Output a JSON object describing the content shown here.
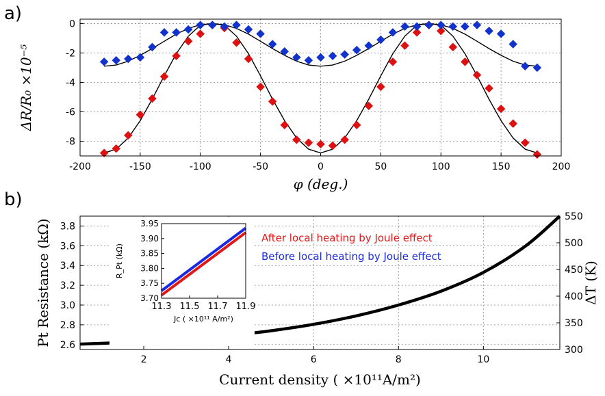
{
  "panel_labels": {
    "a": "a)",
    "b": "b)"
  },
  "chart_data": [
    {
      "id": "a",
      "type": "scatter",
      "xlabel": "φ (deg.)",
      "ylabel": "ΔR/R₀ ×10⁻⁵",
      "xlim": [
        -200,
        200
      ],
      "ylim": [
        -9,
        0.3
      ],
      "xticks": [
        "-200",
        "-150",
        "-100",
        "-50",
        "0",
        "50",
        "100",
        "150",
        "200"
      ],
      "yticks": [
        "-8",
        "-6",
        "-4",
        "-2",
        "0"
      ],
      "grid": true,
      "colors": {
        "red_series": "#dd1111",
        "blue_series": "#1133cc",
        "fit": "#000000"
      },
      "series": [
        {
          "marker": "diamond",
          "color": "#dd1111",
          "x": [
            -180,
            -170,
            -160,
            -150,
            -140,
            -130,
            -120,
            -110,
            -100,
            -90,
            -80,
            -70,
            -60,
            -50,
            -40,
            -30,
            -20,
            -10,
            0,
            10,
            20,
            30,
            40,
            50,
            60,
            70,
            80,
            90,
            100,
            110,
            120,
            130,
            140,
            150,
            160,
            170,
            180
          ],
          "y": [
            -8.8,
            -8.5,
            -7.6,
            -6.2,
            -5.1,
            -3.6,
            -2.2,
            -1.2,
            -0.7,
            -0.1,
            -0.3,
            -1.3,
            -2.4,
            -4.3,
            -5.3,
            -6.9,
            -7.9,
            -8.1,
            -8.2,
            -8.3,
            -7.9,
            -6.9,
            -5.6,
            -4.3,
            -2.6,
            -1.5,
            -0.6,
            -0.1,
            -0.5,
            -1.6,
            -2.6,
            -3.5,
            -4.4,
            -5.8,
            -6.8,
            -8.1,
            -8.9
          ]
        },
        {
          "marker": "diamond",
          "color": "#1133cc",
          "x": [
            -180,
            -170,
            -160,
            -150,
            -140,
            -130,
            -120,
            -110,
            -100,
            -90,
            -80,
            -70,
            -60,
            -50,
            -40,
            -30,
            -20,
            -10,
            0,
            10,
            20,
            30,
            40,
            50,
            60,
            70,
            80,
            90,
            100,
            110,
            120,
            130,
            140,
            150,
            160,
            170,
            180
          ],
          "y": [
            -2.6,
            -2.5,
            -2.4,
            -2.3,
            -1.6,
            -0.6,
            -0.6,
            -0.4,
            -0.1,
            -0.1,
            -0.2,
            -0.1,
            -0.4,
            -0.7,
            -1.4,
            -1.9,
            -2.3,
            -2.5,
            -2.3,
            -2.2,
            -2.1,
            -1.8,
            -1.5,
            -1.1,
            -0.6,
            -0.2,
            -0.2,
            -0.1,
            -0.1,
            -0.2,
            -0.2,
            -0.1,
            -0.5,
            -0.7,
            -1.4,
            -2.9,
            -3.0
          ]
        }
      ],
      "fits": [
        {
          "x": [
            -180,
            -170,
            -160,
            -150,
            -140,
            -130,
            -120,
            -110,
            -100,
            -90,
            -80,
            -70,
            -60,
            -50,
            -40,
            -30,
            -20,
            -10,
            0,
            10,
            20,
            30,
            40,
            50,
            60,
            70,
            80,
            90,
            100,
            110,
            120,
            130,
            140,
            150,
            160,
            170,
            180
          ],
          "y": [
            -8.8,
            -8.54,
            -7.78,
            -6.6,
            -5.14,
            -3.55,
            -2.05,
            -0.86,
            -0.11,
            0,
            -0.11,
            -0.86,
            -2.05,
            -3.55,
            -5.14,
            -6.6,
            -7.78,
            -8.54,
            -8.8,
            -8.54,
            -7.78,
            -6.6,
            -5.14,
            -3.55,
            -2.05,
            -0.86,
            -0.11,
            0,
            -0.11,
            -0.86,
            -2.05,
            -3.55,
            -5.14,
            -6.6,
            -7.78,
            -8.54,
            -8.8
          ]
        },
        {
          "x": [
            -180,
            -170,
            -160,
            -150,
            -140,
            -130,
            -120,
            -110,
            -100,
            -90,
            -80,
            -70,
            -60,
            -50,
            -40,
            -30,
            -20,
            -10,
            0,
            10,
            20,
            30,
            40,
            50,
            60,
            70,
            80,
            90,
            100,
            110,
            120,
            130,
            140,
            150,
            160,
            170,
            180
          ],
          "y": [
            -2.9,
            -2.82,
            -2.56,
            -2.16,
            -1.7,
            -1.2,
            -0.72,
            -0.33,
            -0.08,
            0,
            -0.08,
            -0.33,
            -0.72,
            -1.2,
            -1.7,
            -2.16,
            -2.56,
            -2.82,
            -2.9,
            -2.82,
            -2.56,
            -2.16,
            -1.7,
            -1.2,
            -0.72,
            -0.33,
            -0.08,
            0,
            -0.08,
            -0.33,
            -0.72,
            -1.2,
            -1.7,
            -2.16,
            -2.56,
            -2.82,
            -2.9
          ]
        }
      ]
    },
    {
      "id": "b",
      "type": "line",
      "xlabel": "Current density ( ×10¹¹A/m²)",
      "ylabel": "Pt Resistance (kΩ)",
      "y2label": "ΔT (K)",
      "xlim": [
        0.5,
        11.8
      ],
      "ylim": [
        2.55,
        3.9
      ],
      "y2lim": [
        300,
        550
      ],
      "xticks": [
        "2",
        "4",
        "6",
        "8",
        "10"
      ],
      "yticks": [
        "2.6",
        "2.8",
        "3.0",
        "3.2",
        "3.4",
        "3.6",
        "3.8"
      ],
      "y2ticks": [
        "300",
        "350",
        "400",
        "450",
        "500",
        "550"
      ],
      "grid": true,
      "series": [
        {
          "color": "#000000",
          "x": [
            0.5,
            1,
            2,
            3,
            4,
            5,
            6,
            7,
            8,
            9,
            10,
            11,
            11.8
          ],
          "y": [
            2.605,
            2.612,
            2.63,
            2.655,
            2.69,
            2.74,
            2.805,
            2.89,
            3.0,
            3.14,
            3.33,
            3.6,
            3.9
          ]
        }
      ],
      "legend": {
        "placement": "top-right",
        "entries": [
          {
            "label": "After local heating by Joule effect",
            "color": "#e01818"
          },
          {
            "label": "Before local heating by Joule effect",
            "color": "#1a2ae0"
          }
        ]
      },
      "inset": {
        "type": "line",
        "xlabel": "Jc ( ×10¹¹ A/m²)",
        "ylabel": "R_Pt (kΩ)",
        "xlim": [
          11.3,
          11.9
        ],
        "ylim": [
          3.7,
          3.95
        ],
        "xticks": [
          "11.3",
          "11.5",
          "11.7",
          "11.9"
        ],
        "yticks": [
          "3.70",
          "3.75",
          "3.80",
          "3.85",
          "3.90",
          "3.95"
        ],
        "series": [
          {
            "color": "#e01818",
            "x": [
              11.3,
              11.9
            ],
            "y": [
              3.71,
              3.92
            ]
          },
          {
            "color": "#1a2ae0",
            "x": [
              11.3,
              11.9
            ],
            "y": [
              3.725,
              3.935
            ]
          }
        ]
      }
    }
  ]
}
